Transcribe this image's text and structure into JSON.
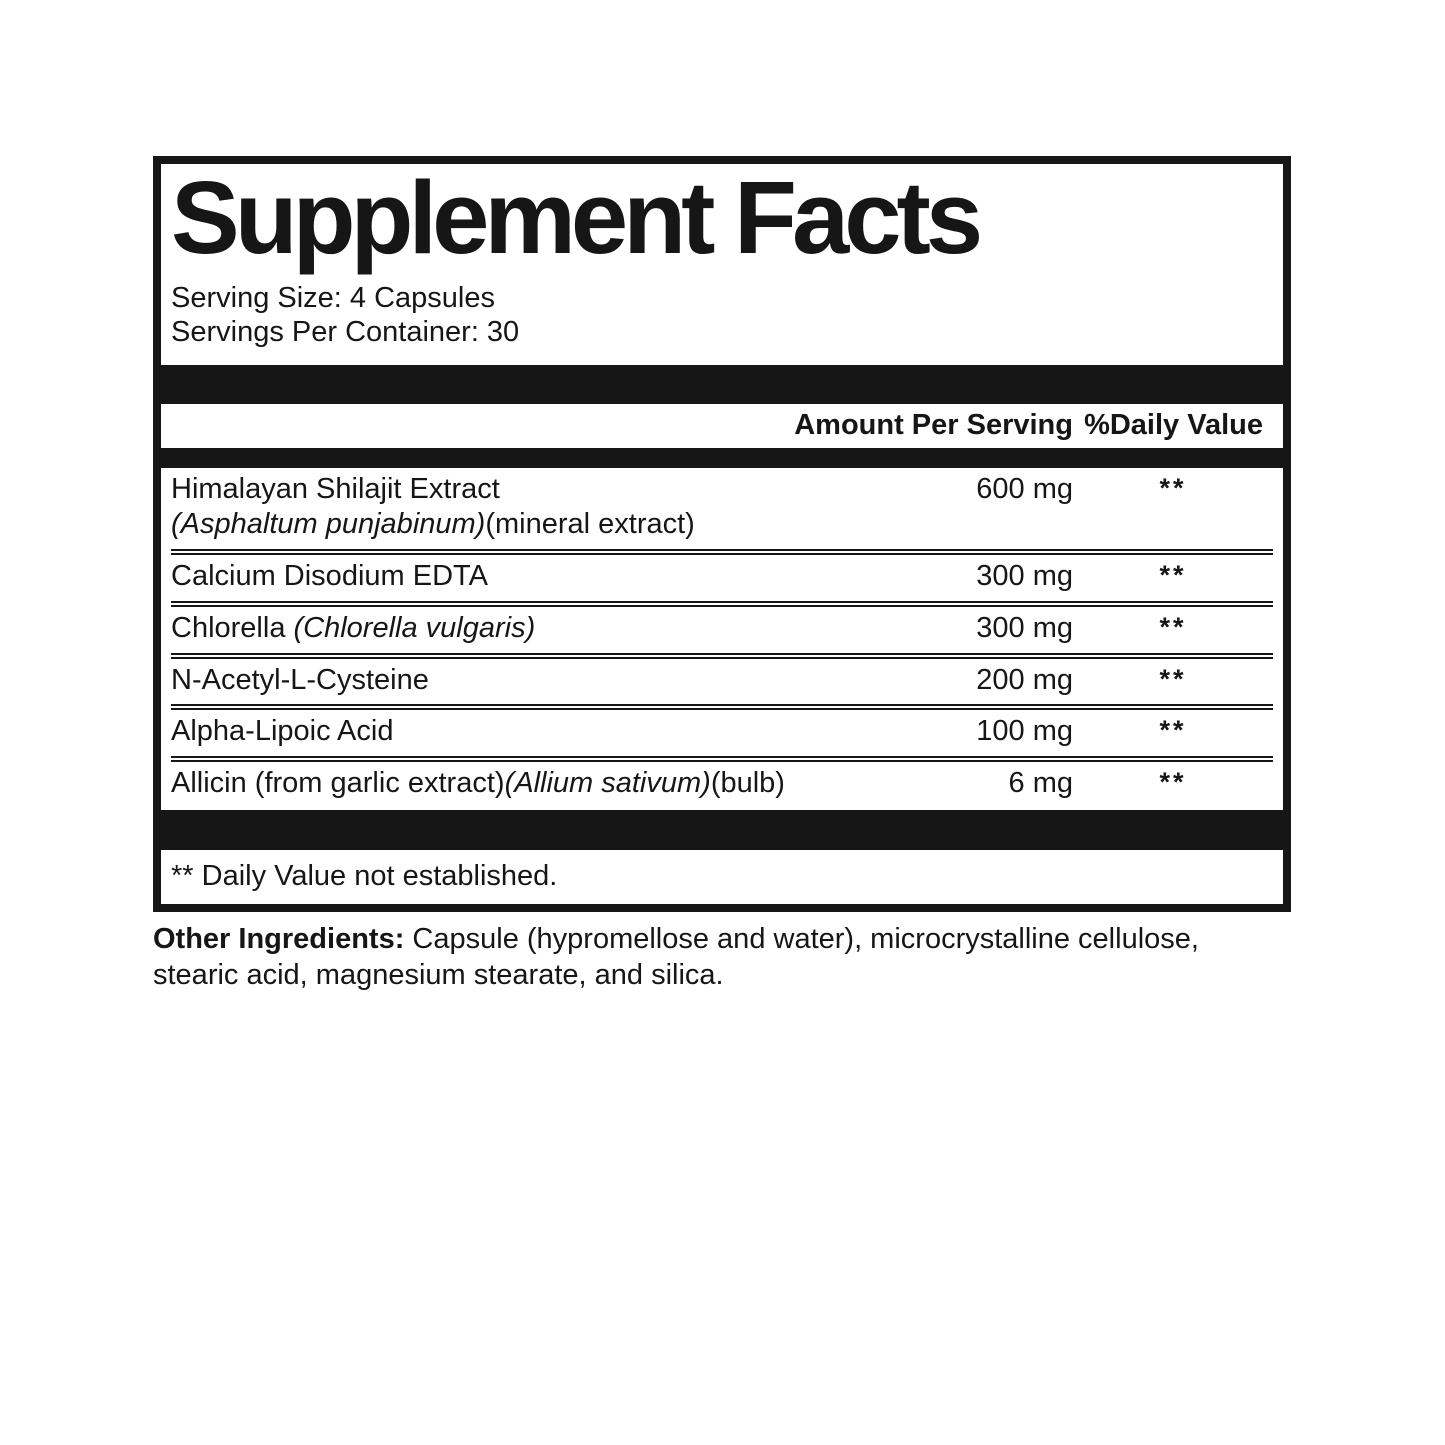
{
  "colors": {
    "ink": "#161616",
    "background": "#ffffff"
  },
  "label": {
    "title": "Supplement Facts",
    "serving_size": "Serving Size: 4 Capsules",
    "servings_per_container": "Servings Per Container: 30",
    "header": {
      "amount": "Amount Per Serving",
      "daily_value": "%Daily Value"
    },
    "rows": [
      {
        "lines": [
          [
            {
              "t": "Himalayan Shilajit Extract"
            }
          ],
          [
            {
              "t": "(Asphaltum punjabinum)",
              "i": true
            },
            {
              "t": "(mineral extract)"
            }
          ]
        ],
        "amount": "600 mg",
        "dv": "**"
      },
      {
        "lines": [
          [
            {
              "t": "Calcium Disodium EDTA"
            }
          ]
        ],
        "amount": "300 mg",
        "dv": "**"
      },
      {
        "lines": [
          [
            {
              "t": "Chlorella "
            },
            {
              "t": "(Chlorella vulgaris)",
              "i": true
            }
          ]
        ],
        "amount": "300 mg",
        "dv": "**"
      },
      {
        "lines": [
          [
            {
              "t": "N-Acetyl-L-Cysteine"
            }
          ]
        ],
        "amount": "200 mg",
        "dv": "**"
      },
      {
        "lines": [
          [
            {
              "t": "Alpha-Lipoic Acid"
            }
          ]
        ],
        "amount": "100 mg",
        "dv": "**"
      },
      {
        "lines": [
          [
            {
              "t": "Allicin (from garlic extract)"
            },
            {
              "t": "(Allium sativum)",
              "i": true
            },
            {
              "t": "(bulb)"
            }
          ]
        ],
        "amount": "6 mg",
        "dv": "**"
      }
    ],
    "footnote": "** Daily Value not established.",
    "other_ingredients_label": "Other Ingredients:",
    "other_ingredients_text": " Capsule (hypromellose and water), microcrystalline cellulose, stearic acid, magnesium stearate, and silica."
  }
}
